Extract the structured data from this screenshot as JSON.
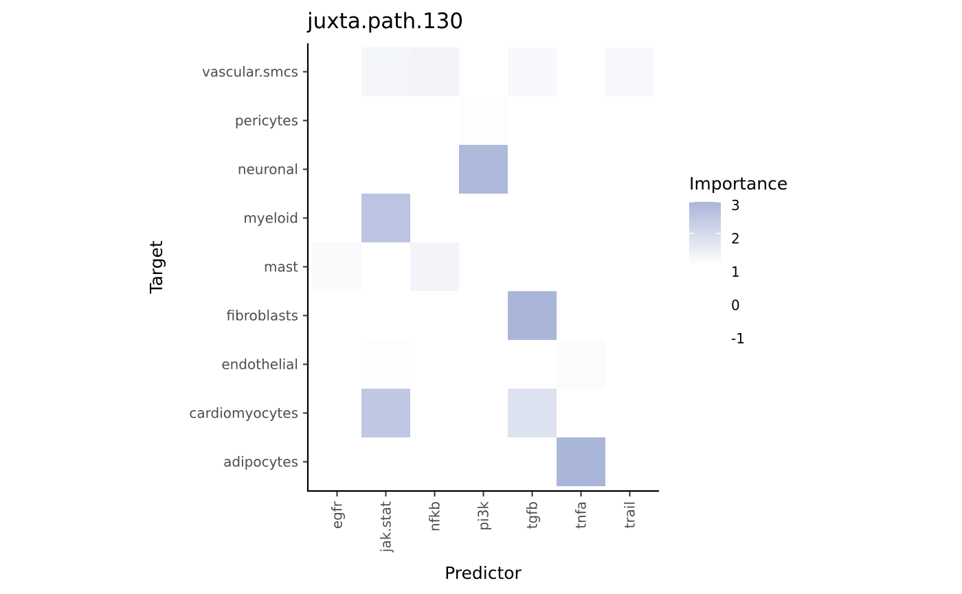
{
  "chart_data": {
    "type": "heatmap",
    "title": "juxta.path.130",
    "xlabel": "Predictor",
    "ylabel": "Target",
    "x_categories": [
      "egfr",
      "jak.stat",
      "nfkb",
      "pi3k",
      "tgfb",
      "tnfa",
      "trail"
    ],
    "y_categories": [
      "adipocytes",
      "cardiomyocytes",
      "endothelial",
      "fibroblasts",
      "mast",
      "myeloid",
      "neuronal",
      "pericytes",
      "vascular.smcs"
    ],
    "cells": [
      {
        "x": "jak.stat",
        "y": "vascular.smcs",
        "value": 1.25
      },
      {
        "x": "nfkb",
        "y": "vascular.smcs",
        "value": 1.3
      },
      {
        "x": "tgfb",
        "y": "vascular.smcs",
        "value": 1.2
      },
      {
        "x": "trail",
        "y": "vascular.smcs",
        "value": 1.2
      },
      {
        "x": "pi3k",
        "y": "pericytes",
        "value": 1.05
      },
      {
        "x": "pi3k",
        "y": "neuronal",
        "value": 2.9
      },
      {
        "x": "jak.stat",
        "y": "myeloid",
        "value": 2.6
      },
      {
        "x": "egfr",
        "y": "mast",
        "value": 1.15
      },
      {
        "x": "nfkb",
        "y": "mast",
        "value": 1.3
      },
      {
        "x": "tgfb",
        "y": "fibroblasts",
        "value": 3.0
      },
      {
        "x": "jak.stat",
        "y": "endothelial",
        "value": 1.05
      },
      {
        "x": "tnfa",
        "y": "endothelial",
        "value": 1.1
      },
      {
        "x": "jak.stat",
        "y": "cardiomyocytes",
        "value": 2.5
      },
      {
        "x": "tgfb",
        "y": "cardiomyocytes",
        "value": 1.8
      },
      {
        "x": "tnfa",
        "y": "adipocytes",
        "value": 3.0
      }
    ],
    "legend": {
      "title": "Importance",
      "ticks": [
        3,
        2,
        1,
        0,
        -1
      ],
      "tick_labels": [
        "3",
        "2",
        "1",
        "0",
        "-1"
      ],
      "range": [
        1,
        3
      ],
      "low_color": "#ffffff",
      "high_color": "#aab6d9",
      "placement": "right"
    },
    "grid": false
  }
}
